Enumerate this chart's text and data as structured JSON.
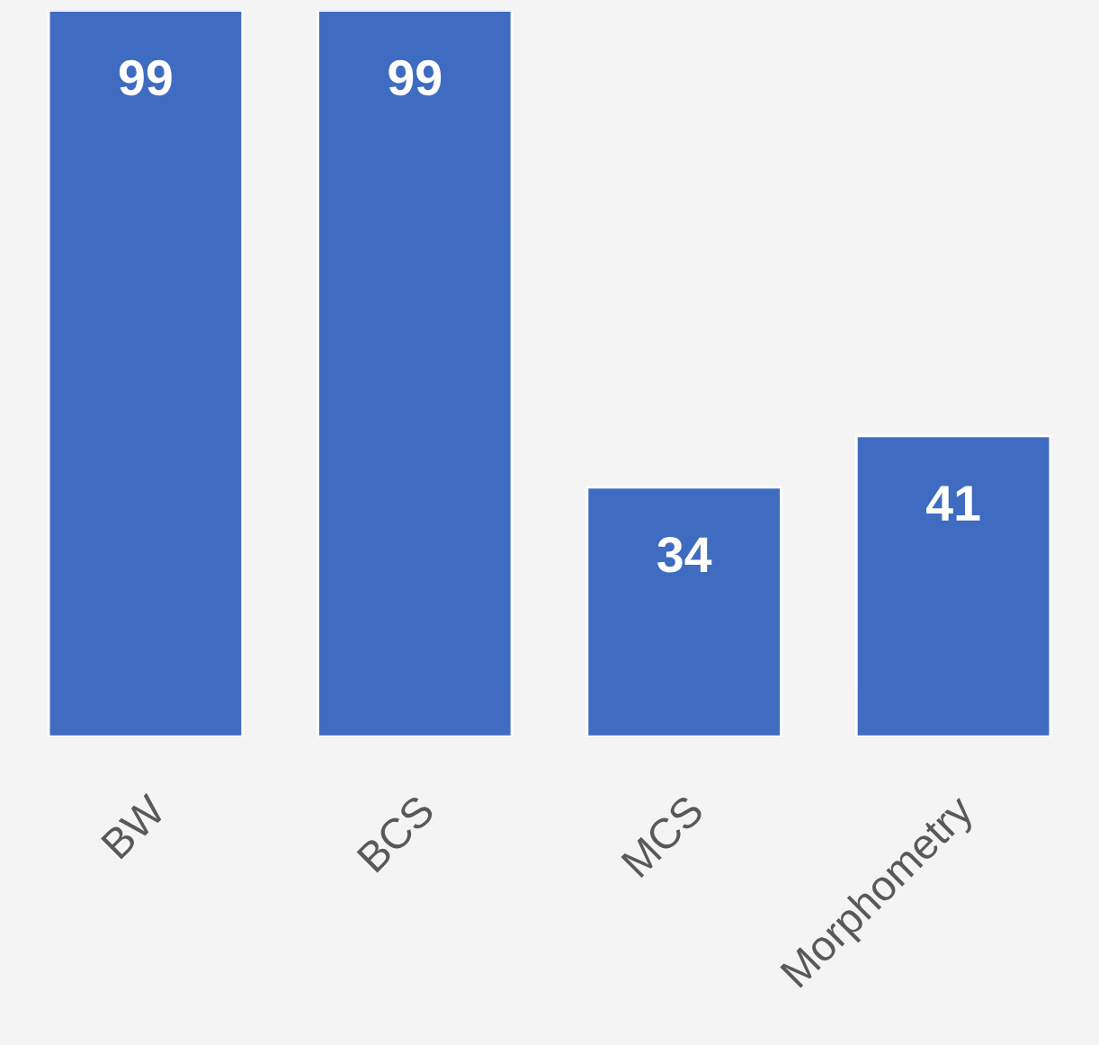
{
  "chart_data": {
    "type": "bar",
    "categories": [
      "BW",
      "BCS",
      "MCS",
      "Morphometry"
    ],
    "values": [
      99,
      99,
      34,
      41
    ],
    "color": "#3f6cc0",
    "data_labels": true,
    "grid": false,
    "legend": false
  }
}
